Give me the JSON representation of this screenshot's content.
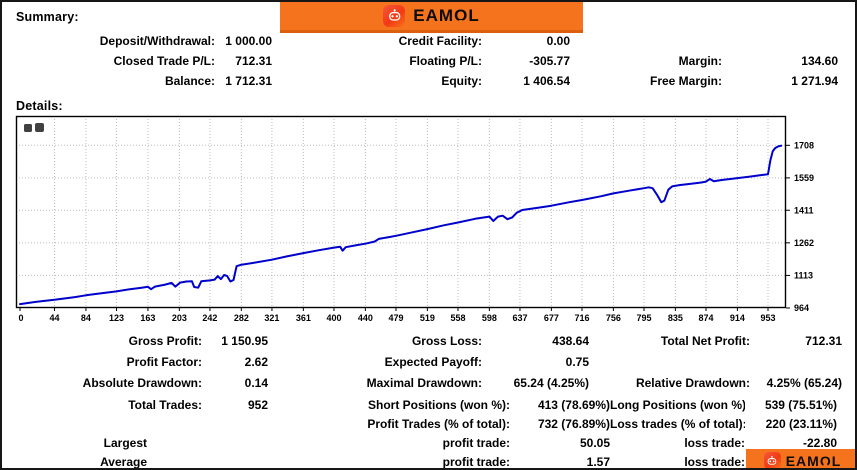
{
  "brand": {
    "name": "EAMOL",
    "name_pre": "EAM",
    "name_o": "O",
    "name_post": "L",
    "banner_color": "#F4731C",
    "badge_color": "#F23A14"
  },
  "summary": {
    "heading": "Summary:",
    "rows": [
      [
        "Deposit/Withdrawal:",
        "1 000.00",
        "Credit Facility:",
        "0.00",
        "",
        ""
      ],
      [
        "Closed Trade P/L:",
        "712.31",
        "Floating P/L:",
        "-305.77",
        "Margin:",
        "134.60"
      ],
      [
        "Balance:",
        "1 712.31",
        "Equity:",
        "1 406.54",
        "Free Margin:",
        "1 271.94"
      ]
    ]
  },
  "details": {
    "heading": "Details:",
    "stats_rows": [
      [
        "Gross Profit:",
        "1 150.95",
        "Gross Loss:",
        "438.64",
        "Total Net Profit:",
        "712.31"
      ],
      [
        "Profit Factor:",
        "2.62",
        "Expected Payoff:",
        "0.75",
        "",
        ""
      ],
      [
        "Absolute Drawdown:",
        "0.14",
        "Maximal Drawdown:",
        "65.24 (4.25%)",
        "Relative Drawdown:",
        "4.25% (65.24)"
      ]
    ],
    "trade_rows": [
      [
        "Total Trades:",
        "952",
        "Short Positions (won %):",
        "413 (78.69%)",
        "Long Positions (won %):",
        "539 (75.51%)"
      ],
      [
        "",
        "",
        "Profit Trades (% of total):",
        "732 (76.89%)",
        "Loss trades (% of total):",
        "220 (23.11%)"
      ],
      [
        "Largest",
        "",
        "profit trade:",
        "50.05",
        "loss trade:",
        "-22.80"
      ],
      [
        "Average",
        "",
        "profit trade:",
        "1.57",
        "loss trade:",
        ""
      ]
    ]
  },
  "chart_data": {
    "type": "line",
    "title": "",
    "xlabel": "",
    "ylabel": "",
    "grid": "dotted",
    "legend": "none",
    "line_color": "#0000CC",
    "x_ticks": [
      0,
      44,
      84,
      123,
      163,
      203,
      242,
      282,
      321,
      361,
      400,
      440,
      479,
      519,
      558,
      598,
      637,
      677,
      716,
      756,
      795,
      835,
      874,
      914,
      953
    ],
    "y_ticks": [
      964,
      1113,
      1262,
      1411,
      1559,
      1708
    ],
    "xlim": [
      0,
      976
    ],
    "ylim": [
      964,
      1842
    ],
    "series": [
      {
        "name": "Balance",
        "color": "#0000CC",
        "points": [
          [
            0,
            982
          ],
          [
            20,
            992
          ],
          [
            44,
            1002
          ],
          [
            70,
            1014
          ],
          [
            84,
            1022
          ],
          [
            100,
            1030
          ],
          [
            123,
            1040
          ],
          [
            140,
            1050
          ],
          [
            155,
            1057
          ],
          [
            163,
            1061
          ],
          [
            167,
            1050
          ],
          [
            172,
            1062
          ],
          [
            185,
            1071
          ],
          [
            193,
            1079
          ],
          [
            198,
            1062
          ],
          [
            204,
            1080
          ],
          [
            212,
            1085
          ],
          [
            219,
            1086
          ],
          [
            222,
            1060
          ],
          [
            227,
            1057
          ],
          [
            231,
            1086
          ],
          [
            242,
            1090
          ],
          [
            248,
            1094
          ],
          [
            252,
            1110
          ],
          [
            256,
            1096
          ],
          [
            260,
            1115
          ],
          [
            264,
            1110
          ],
          [
            268,
            1085
          ],
          [
            272,
            1092
          ],
          [
            276,
            1155
          ],
          [
            282,
            1162
          ],
          [
            300,
            1172
          ],
          [
            321,
            1185
          ],
          [
            340,
            1200
          ],
          [
            361,
            1215
          ],
          [
            380,
            1228
          ],
          [
            400,
            1240
          ],
          [
            408,
            1244
          ],
          [
            411,
            1226
          ],
          [
            415,
            1242
          ],
          [
            430,
            1252
          ],
          [
            440,
            1258
          ],
          [
            452,
            1268
          ],
          [
            457,
            1280
          ],
          [
            470,
            1288
          ],
          [
            479,
            1294
          ],
          [
            500,
            1310
          ],
          [
            519,
            1325
          ],
          [
            540,
            1342
          ],
          [
            558,
            1355
          ],
          [
            580,
            1372
          ],
          [
            598,
            1382
          ],
          [
            603,
            1362
          ],
          [
            609,
            1382
          ],
          [
            615,
            1386
          ],
          [
            621,
            1370
          ],
          [
            627,
            1378
          ],
          [
            633,
            1400
          ],
          [
            640,
            1412
          ],
          [
            660,
            1422
          ],
          [
            677,
            1432
          ],
          [
            700,
            1448
          ],
          [
            716,
            1458
          ],
          [
            740,
            1475
          ],
          [
            756,
            1488
          ],
          [
            775,
            1500
          ],
          [
            795,
            1512
          ],
          [
            801,
            1516
          ],
          [
            806,
            1512
          ],
          [
            812,
            1480
          ],
          [
            817,
            1448
          ],
          [
            821,
            1455
          ],
          [
            826,
            1505
          ],
          [
            831,
            1520
          ],
          [
            840,
            1526
          ],
          [
            855,
            1532
          ],
          [
            868,
            1538
          ],
          [
            874,
            1542
          ],
          [
            879,
            1554
          ],
          [
            884,
            1544
          ],
          [
            895,
            1550
          ],
          [
            905,
            1554
          ],
          [
            914,
            1558
          ],
          [
            930,
            1565
          ],
          [
            945,
            1572
          ],
          [
            953,
            1576
          ],
          [
            956,
            1640
          ],
          [
            959,
            1680
          ],
          [
            962,
            1695
          ],
          [
            966,
            1703
          ],
          [
            970,
            1706
          ]
        ]
      }
    ]
  }
}
